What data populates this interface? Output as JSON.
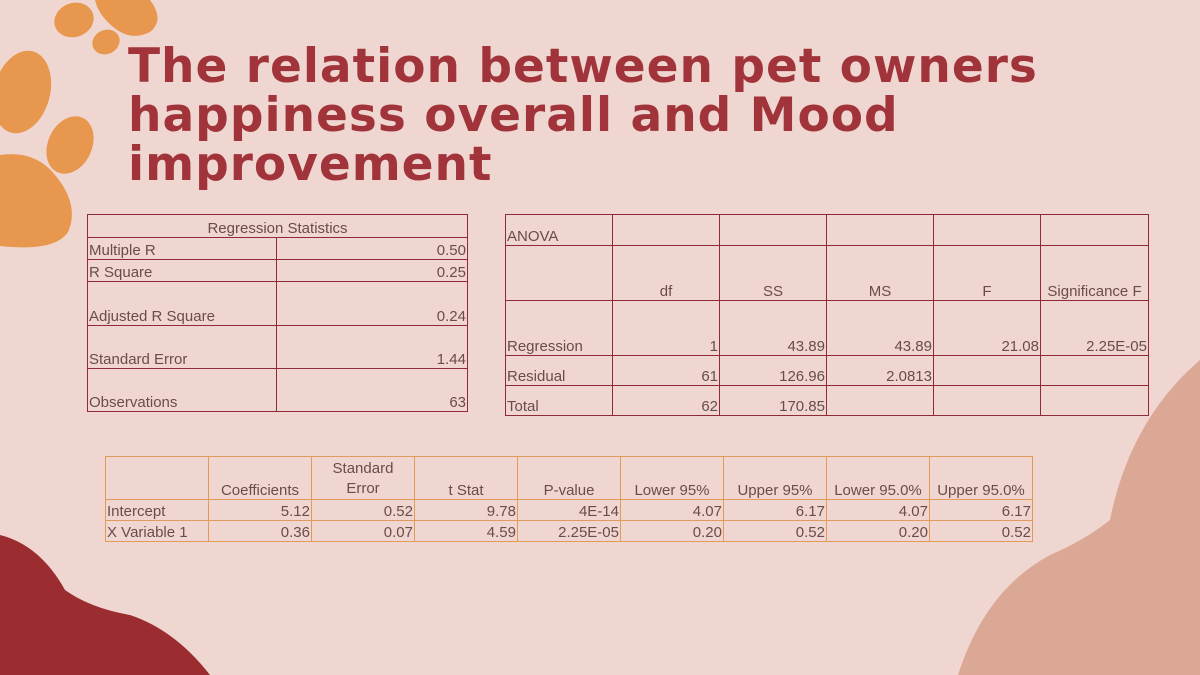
{
  "title": "The relation between pet owners happiness overall and Mood improvement",
  "colors": {
    "background": "#f0d6d0",
    "title": "#a0343a",
    "table_border_primary": "#8e2b36",
    "table_border_secondary": "#e29a5a",
    "paw": "#e8974e",
    "blob_dark": "#9b2c30",
    "blob_light": "#dba896"
  },
  "regression_statistics": {
    "header": "Regression Statistics",
    "rows": [
      {
        "label": "Multiple R",
        "value": "0.50"
      },
      {
        "label": "R Square",
        "value": "0.25"
      },
      {
        "label": "Adjusted R Square",
        "value": "0.24"
      },
      {
        "label": "Standard Error",
        "value": "1.44"
      },
      {
        "label": "Observations",
        "value": "63"
      }
    ]
  },
  "anova": {
    "title": "ANOVA",
    "columns": [
      "",
      "df",
      "SS",
      "MS",
      "F",
      "Significance F"
    ],
    "rows": [
      [
        "Regression",
        "1",
        "43.89",
        "43.89",
        "21.08",
        "2.25E-05"
      ],
      [
        "Residual",
        "61",
        "126.96",
        "2.0813",
        "",
        ""
      ],
      [
        "Total",
        "62",
        "170.85",
        "",
        "",
        ""
      ]
    ]
  },
  "coefficients": {
    "columns": [
      "",
      "Coefficients",
      "Standard Error",
      "t Stat",
      "P-value",
      "Lower 95%",
      "Upper 95%",
      "Lower 95.0%",
      "Upper 95.0%"
    ],
    "rows": [
      [
        "Intercept",
        "5.12",
        "0.52",
        "9.78",
        "4E-14",
        "4.07",
        "6.17",
        "4.07",
        "6.17"
      ],
      [
        "X Variable 1",
        "0.36",
        "0.07",
        "4.59",
        "2.25E-05",
        "0.20",
        "0.52",
        "0.20",
        "0.52"
      ]
    ]
  }
}
